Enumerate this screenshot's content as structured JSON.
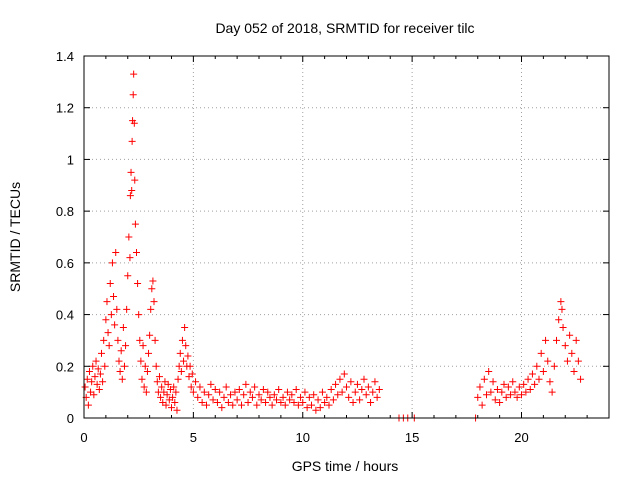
{
  "chart_data": {
    "type": "scatter",
    "title": "Day 052 of 2018, SRMTID for receiver tilc",
    "xlabel": "GPS time / hours",
    "ylabel": "SRMTID / TECUs",
    "xlim": [
      0,
      24
    ],
    "ylim": [
      0,
      1.4
    ],
    "xticks": [
      0,
      5,
      10,
      15,
      20
    ],
    "yticks": [
      0,
      0.2,
      0.4,
      0.6,
      0.8,
      1.0,
      1.2,
      1.4
    ],
    "xtick_labels": [
      "0",
      "5",
      "10",
      "15",
      "20"
    ],
    "ytick_labels": [
      "0",
      "0.2",
      "0.4",
      "0.6",
      "0.8",
      "1",
      "1.2",
      "1.4"
    ],
    "grid": true,
    "marker": "+",
    "color": "#ff0000",
    "series": [
      {
        "name": "SRMTID",
        "points": [
          [
            0.05,
            0.12
          ],
          [
            0.1,
            0.08
          ],
          [
            0.15,
            0.15
          ],
          [
            0.2,
            0.05
          ],
          [
            0.25,
            0.18
          ],
          [
            0.3,
            0.1
          ],
          [
            0.35,
            0.14
          ],
          [
            0.4,
            0.2
          ],
          [
            0.45,
            0.09
          ],
          [
            0.5,
            0.16
          ],
          [
            0.55,
            0.22
          ],
          [
            0.6,
            0.13
          ],
          [
            0.65,
            0.19
          ],
          [
            0.7,
            0.11
          ],
          [
            0.75,
            0.17
          ],
          [
            0.8,
            0.25
          ],
          [
            0.85,
            0.14
          ],
          [
            0.9,
            0.3
          ],
          [
            0.95,
            0.2
          ],
          [
            1.0,
            0.38
          ],
          [
            1.05,
            0.45
          ],
          [
            1.1,
            0.33
          ],
          [
            1.15,
            0.28
          ],
          [
            1.2,
            0.52
          ],
          [
            1.25,
            0.4
          ],
          [
            1.3,
            0.6
          ],
          [
            1.35,
            0.47
          ],
          [
            1.4,
            0.36
          ],
          [
            1.45,
            0.64
          ],
          [
            1.5,
            0.42
          ],
          [
            1.55,
            0.3
          ],
          [
            1.6,
            0.22
          ],
          [
            1.65,
            0.18
          ],
          [
            1.7,
            0.26
          ],
          [
            1.75,
            0.15
          ],
          [
            1.8,
            0.35
          ],
          [
            1.85,
            0.2
          ],
          [
            1.9,
            0.28
          ],
          [
            1.95,
            0.42
          ],
          [
            2.0,
            0.55
          ],
          [
            2.05,
            0.7
          ],
          [
            2.1,
            0.62
          ],
          [
            2.12,
            0.86
          ],
          [
            2.15,
            0.95
          ],
          [
            2.18,
            0.88
          ],
          [
            2.2,
            1.07
          ],
          [
            2.22,
            1.15
          ],
          [
            2.25,
            1.25
          ],
          [
            2.27,
            1.33
          ],
          [
            2.3,
            1.14
          ],
          [
            2.32,
            0.92
          ],
          [
            2.35,
            0.75
          ],
          [
            2.4,
            0.64
          ],
          [
            2.45,
            0.52
          ],
          [
            2.5,
            0.4
          ],
          [
            2.55,
            0.3
          ],
          [
            2.6,
            0.22
          ],
          [
            2.65,
            0.15
          ],
          [
            2.7,
            0.28
          ],
          [
            2.75,
            0.12
          ],
          [
            2.8,
            0.2
          ],
          [
            2.85,
            0.1
          ],
          [
            2.9,
            0.18
          ],
          [
            2.95,
            0.25
          ],
          [
            3.0,
            0.32
          ],
          [
            3.05,
            0.42
          ],
          [
            3.1,
            0.5
          ],
          [
            3.15,
            0.53
          ],
          [
            3.2,
            0.45
          ],
          [
            3.25,
            0.3
          ],
          [
            3.3,
            0.2
          ],
          [
            3.35,
            0.14
          ],
          [
            3.4,
            0.1
          ],
          [
            3.45,
            0.16
          ],
          [
            3.5,
            0.08
          ],
          [
            3.55,
            0.12
          ],
          [
            3.6,
            0.06
          ],
          [
            3.65,
            0.1
          ],
          [
            3.7,
            0.14
          ],
          [
            3.75,
            0.05
          ],
          [
            3.8,
            0.09
          ],
          [
            3.85,
            0.13
          ],
          [
            3.9,
            0.07
          ],
          [
            3.95,
            0.11
          ],
          [
            4.0,
            0.04
          ],
          [
            4.05,
            0.08
          ],
          [
            4.1,
            0.12
          ],
          [
            4.15,
            0.06
          ],
          [
            4.2,
            0.1
          ],
          [
            4.25,
            0.03
          ],
          [
            4.3,
            0.15
          ],
          [
            4.35,
            0.2
          ],
          [
            4.4,
            0.25
          ],
          [
            4.45,
            0.18
          ],
          [
            4.5,
            0.3
          ],
          [
            4.55,
            0.22
          ],
          [
            4.6,
            0.35
          ],
          [
            4.65,
            0.28
          ],
          [
            4.7,
            0.2
          ],
          [
            4.75,
            0.24
          ],
          [
            4.8,
            0.16
          ],
          [
            4.85,
            0.2
          ],
          [
            4.9,
            0.12
          ],
          [
            4.95,
            0.17
          ],
          [
            5.0,
            0.1
          ],
          [
            5.1,
            0.14
          ],
          [
            5.2,
            0.08
          ],
          [
            5.3,
            0.12
          ],
          [
            5.4,
            0.06
          ],
          [
            5.5,
            0.1
          ],
          [
            5.6,
            0.05
          ],
          [
            5.7,
            0.09
          ],
          [
            5.8,
            0.13
          ],
          [
            5.9,
            0.07
          ],
          [
            6.0,
            0.11
          ],
          [
            6.1,
            0.06
          ],
          [
            6.2,
            0.1
          ],
          [
            6.3,
            0.04
          ],
          [
            6.4,
            0.08
          ],
          [
            6.5,
            0.12
          ],
          [
            6.6,
            0.06
          ],
          [
            6.7,
            0.09
          ],
          [
            6.8,
            0.05
          ],
          [
            6.9,
            0.1
          ],
          [
            7.0,
            0.07
          ],
          [
            7.1,
            0.11
          ],
          [
            7.2,
            0.05
          ],
          [
            7.3,
            0.09
          ],
          [
            7.4,
            0.13
          ],
          [
            7.5,
            0.06
          ],
          [
            7.6,
            0.1
          ],
          [
            7.7,
            0.08
          ],
          [
            7.8,
            0.12
          ],
          [
            7.9,
            0.05
          ],
          [
            8.0,
            0.09
          ],
          [
            8.1,
            0.07
          ],
          [
            8.2,
            0.11
          ],
          [
            8.3,
            0.06
          ],
          [
            8.4,
            0.1
          ],
          [
            8.5,
            0.08
          ],
          [
            8.6,
            0.05
          ],
          [
            8.7,
            0.09
          ],
          [
            8.8,
            0.07
          ],
          [
            8.9,
            0.11
          ],
          [
            9.0,
            0.06
          ],
          [
            9.1,
            0.08
          ],
          [
            9.2,
            0.05
          ],
          [
            9.3,
            0.1
          ],
          [
            9.4,
            0.07
          ],
          [
            9.5,
            0.09
          ],
          [
            9.6,
            0.06
          ],
          [
            9.7,
            0.11
          ],
          [
            9.8,
            0.05
          ],
          [
            9.9,
            0.08
          ],
          [
            10.0,
            0.06
          ],
          [
            10.1,
            0.1
          ],
          [
            10.2,
            0.04
          ],
          [
            10.3,
            0.08
          ],
          [
            10.4,
            0.05
          ],
          [
            10.5,
            0.09
          ],
          [
            10.6,
            0.03
          ],
          [
            10.7,
            0.07
          ],
          [
            10.8,
            0.04
          ],
          [
            10.9,
            0.1
          ],
          [
            11.0,
            0.06
          ],
          [
            11.1,
            0.08
          ],
          [
            11.2,
            0.05
          ],
          [
            11.3,
            0.11
          ],
          [
            11.4,
            0.07
          ],
          [
            11.5,
            0.13
          ],
          [
            11.6,
            0.09
          ],
          [
            11.7,
            0.15
          ],
          [
            11.8,
            0.1
          ],
          [
            11.9,
            0.17
          ],
          [
            12.0,
            0.12
          ],
          [
            12.1,
            0.08
          ],
          [
            12.2,
            0.14
          ],
          [
            12.3,
            0.06
          ],
          [
            12.4,
            0.1
          ],
          [
            12.5,
            0.13
          ],
          [
            12.6,
            0.07
          ],
          [
            12.7,
            0.11
          ],
          [
            12.8,
            0.15
          ],
          [
            12.9,
            0.09
          ],
          [
            13.0,
            0.12
          ],
          [
            13.1,
            0.06
          ],
          [
            13.2,
            0.1
          ],
          [
            13.3,
            0.14
          ],
          [
            13.4,
            0.08
          ],
          [
            13.5,
            0.11
          ],
          [
            14.4,
            0.0
          ],
          [
            14.6,
            0.0
          ],
          [
            14.8,
            0.0
          ],
          [
            15.1,
            0.0
          ],
          [
            17.9,
            0.0
          ],
          [
            18.0,
            0.08
          ],
          [
            18.1,
            0.12
          ],
          [
            18.2,
            0.05
          ],
          [
            18.3,
            0.15
          ],
          [
            18.4,
            0.09
          ],
          [
            18.5,
            0.18
          ],
          [
            18.6,
            0.1
          ],
          [
            18.7,
            0.14
          ],
          [
            18.8,
            0.07
          ],
          [
            18.9,
            0.11
          ],
          [
            19.0,
            0.06
          ],
          [
            19.1,
            0.1
          ],
          [
            19.2,
            0.13
          ],
          [
            19.3,
            0.08
          ],
          [
            19.4,
            0.12
          ],
          [
            19.5,
            0.09
          ],
          [
            19.6,
            0.14
          ],
          [
            19.7,
            0.1
          ],
          [
            19.8,
            0.08
          ],
          [
            19.9,
            0.12
          ],
          [
            20.0,
            0.09
          ],
          [
            20.1,
            0.13
          ],
          [
            20.2,
            0.1
          ],
          [
            20.3,
            0.15
          ],
          [
            20.4,
            0.11
          ],
          [
            20.5,
            0.17
          ],
          [
            20.6,
            0.13
          ],
          [
            20.7,
            0.2
          ],
          [
            20.8,
            0.15
          ],
          [
            20.9,
            0.25
          ],
          [
            21.0,
            0.18
          ],
          [
            21.1,
            0.3
          ],
          [
            21.2,
            0.22
          ],
          [
            21.3,
            0.14
          ],
          [
            21.4,
            0.1
          ],
          [
            21.5,
            0.2
          ],
          [
            21.6,
            0.3
          ],
          [
            21.7,
            0.38
          ],
          [
            21.8,
            0.45
          ],
          [
            21.85,
            0.42
          ],
          [
            21.9,
            0.35
          ],
          [
            22.0,
            0.28
          ],
          [
            22.1,
            0.22
          ],
          [
            22.2,
            0.32
          ],
          [
            22.3,
            0.25
          ],
          [
            22.4,
            0.18
          ],
          [
            22.5,
            0.3
          ],
          [
            22.6,
            0.22
          ],
          [
            22.7,
            0.15
          ]
        ]
      }
    ]
  }
}
